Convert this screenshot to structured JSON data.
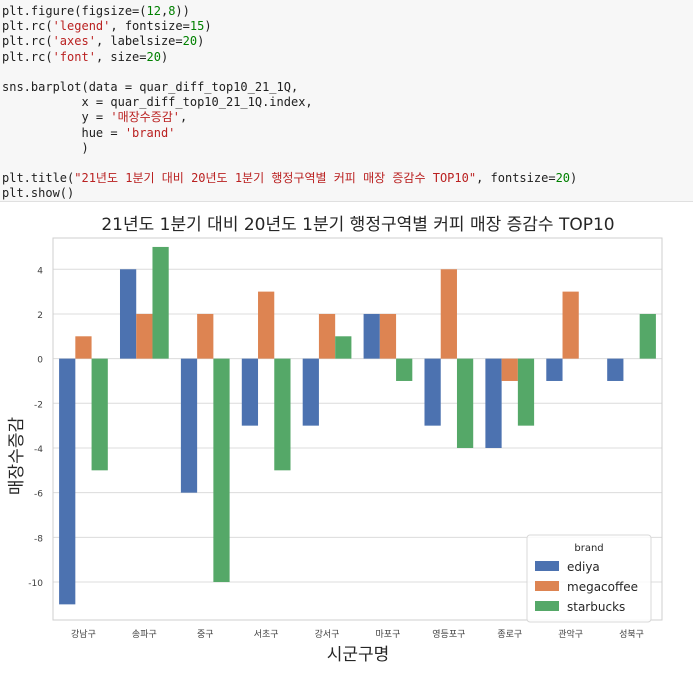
{
  "code": {
    "lines": [
      [
        {
          "t": "plt.figure(figsize=(",
          "c": "kw"
        },
        {
          "t": "12",
          "c": "num"
        },
        {
          "t": ",",
          "c": "kw"
        },
        {
          "t": "8",
          "c": "num"
        },
        {
          "t": "))",
          "c": "kw"
        }
      ],
      [
        {
          "t": "plt.rc(",
          "c": "kw"
        },
        {
          "t": "'legend'",
          "c": "str"
        },
        {
          "t": ", fontsize=",
          "c": "kw"
        },
        {
          "t": "15",
          "c": "num"
        },
        {
          "t": ")",
          "c": "kw"
        }
      ],
      [
        {
          "t": "plt.rc(",
          "c": "kw"
        },
        {
          "t": "'axes'",
          "c": "str"
        },
        {
          "t": ", labelsize=",
          "c": "kw"
        },
        {
          "t": "20",
          "c": "num"
        },
        {
          "t": ")",
          "c": "kw"
        }
      ],
      [
        {
          "t": "plt.rc(",
          "c": "kw"
        },
        {
          "t": "'font'",
          "c": "str"
        },
        {
          "t": ", size=",
          "c": "kw"
        },
        {
          "t": "20",
          "c": "num"
        },
        {
          "t": ")",
          "c": "kw"
        }
      ],
      [
        {
          "t": "",
          "c": "kw"
        }
      ],
      [
        {
          "t": "sns.barplot(data = quar_diff_top10_21_1Q,",
          "c": "kw"
        }
      ],
      [
        {
          "t": "           x = quar_diff_top10_21_1Q.index,",
          "c": "kw"
        }
      ],
      [
        {
          "t": "           y = ",
          "c": "kw"
        },
        {
          "t": "'매장수증감'",
          "c": "str"
        },
        {
          "t": ",",
          "c": "kw"
        }
      ],
      [
        {
          "t": "           hue = ",
          "c": "kw"
        },
        {
          "t": "'brand'",
          "c": "str"
        }
      ],
      [
        {
          "t": "           )",
          "c": "kw"
        }
      ],
      [
        {
          "t": "",
          "c": "kw"
        }
      ],
      [
        {
          "t": "plt.title(",
          "c": "kw"
        },
        {
          "t": "\"21년도 1분기 대비 20년도 1분기 행정구역별 커피 매장 증감수 TOP10\"",
          "c": "str"
        },
        {
          "t": ", fontsize=",
          "c": "kw"
        },
        {
          "t": "20",
          "c": "num"
        },
        {
          "t": ")",
          "c": "kw"
        }
      ],
      [
        {
          "t": "plt.show()",
          "c": "kw"
        }
      ]
    ]
  },
  "chart_data": {
    "type": "bar",
    "title": "21년도 1분기 대비 20년도 1분기 행정구역별 커피 매장 증감수 TOP10",
    "xlabel": "시군구명",
    "ylabel": "매장수증감",
    "categories": [
      "강남구",
      "송파구",
      "중구",
      "서초구",
      "강서구",
      "마포구",
      "영등포구",
      "종로구",
      "관악구",
      "성북구"
    ],
    "ylim": [
      -11.7,
      5.4
    ],
    "yticks": [
      4,
      2,
      0,
      -2,
      -4,
      -6,
      -8,
      -10
    ],
    "grid": true,
    "legend": {
      "title": "brand",
      "position": "lower-right"
    },
    "series": [
      {
        "name": "ediya",
        "color": "#4c72b0",
        "values": [
          -11,
          4,
          -6,
          -3,
          -3,
          2,
          -3,
          -4,
          -1,
          -1
        ]
      },
      {
        "name": "megacoffee",
        "color": "#dd8452",
        "values": [
          1,
          2,
          2,
          3,
          2,
          2,
          4,
          -1,
          3,
          0
        ]
      },
      {
        "name": "starbucks",
        "color": "#55a868",
        "values": [
          -5,
          5,
          -10,
          -5,
          1,
          -1,
          -4,
          -3,
          0,
          2
        ]
      }
    ]
  }
}
